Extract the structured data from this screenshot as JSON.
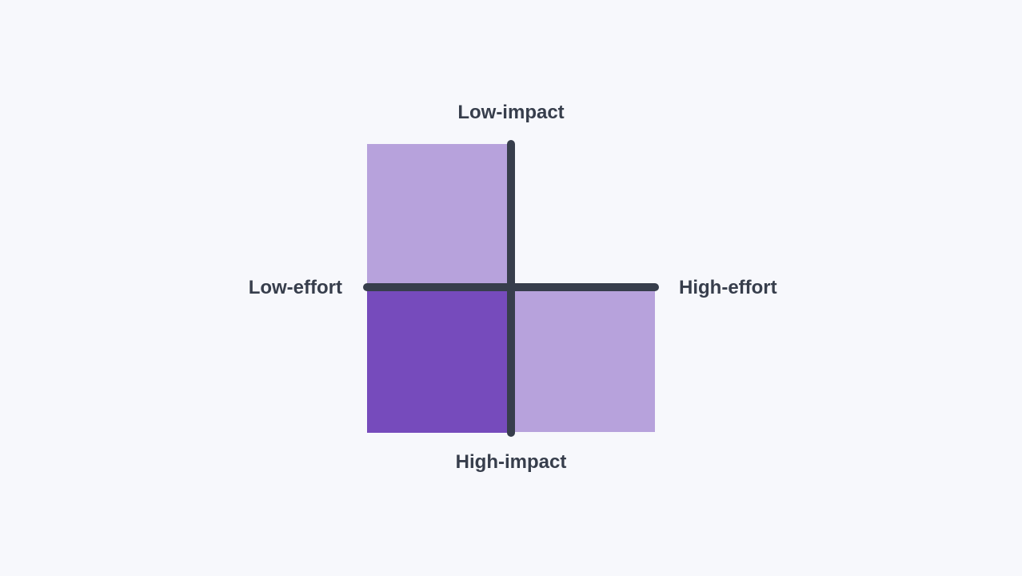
{
  "labels": {
    "top": "Low-impact",
    "bottom": "High-impact",
    "left": "Low-effort",
    "right": "High-effort"
  },
  "quadrants": [
    {
      "id": "low-effort-low-impact",
      "color": "#b7a2dc"
    },
    {
      "id": "high-effort-low-impact",
      "color": null,
      "empty": true
    },
    {
      "id": "low-effort-high-impact",
      "color": "#764bbc"
    },
    {
      "id": "high-effort-high-impact",
      "color": "#b7a2dc"
    }
  ],
  "colors": {
    "background": "#f7f8fc",
    "axis": "#373e4c",
    "text": "#373e4c"
  }
}
